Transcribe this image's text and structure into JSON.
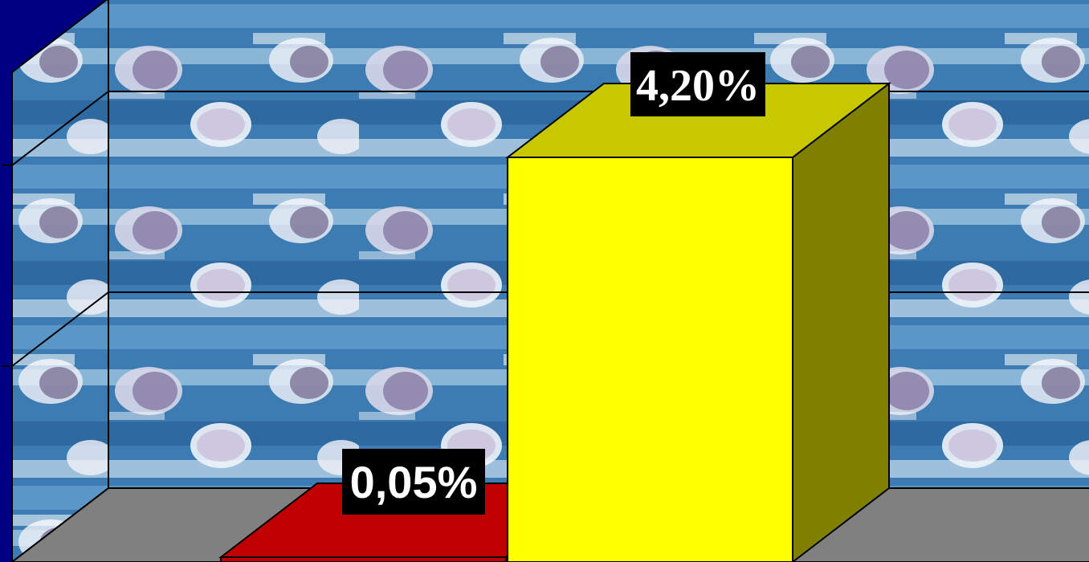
{
  "colors": {
    "background": "#000080",
    "wall_base": "#2f6fa6",
    "floor": "#808080",
    "gridline": "#000000",
    "label_bg": "#000000",
    "label_text": "#ffffff"
  },
  "chart_data": {
    "type": "bar",
    "three_d": true,
    "title": "",
    "xlabel": "",
    "ylabel": "",
    "categories": [
      "",
      ""
    ],
    "series": [
      {
        "values": [
          0.05,
          4.2
        ]
      }
    ],
    "bar_colors": [
      {
        "front": "#c00000",
        "top": "#c00000",
        "side": "#800000"
      },
      {
        "front": "#ffff00",
        "top": "#c8c800",
        "side": "#808000"
      }
    ],
    "data_labels": [
      "0,05%",
      "4,20%"
    ],
    "ylim": [
      0,
      5
    ],
    "grid": true,
    "legend": "none"
  }
}
